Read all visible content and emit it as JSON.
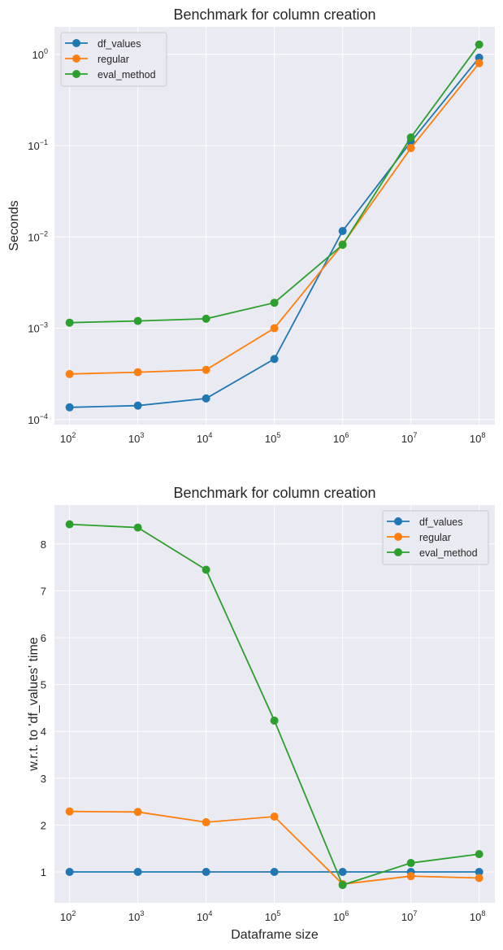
{
  "chart_data": [
    {
      "type": "line",
      "title": "Benchmark for column creation",
      "xlabel": "",
      "ylabel": "Seconds",
      "xscale": "log",
      "yscale": "log",
      "x": [
        100,
        1000,
        10000,
        100000,
        1000000,
        10000000,
        100000000
      ],
      "x_exponents": [
        "2",
        "3",
        "4",
        "5",
        "6",
        "7",
        "8"
      ],
      "xlim": [
        60,
        170000000
      ],
      "ylim": [
        8.8e-05,
        2.0
      ],
      "y_ticks": [
        0.0001,
        0.001,
        0.01,
        0.1,
        1
      ],
      "y_tick_exponents": [
        "−4",
        "−3",
        "−2",
        "−1",
        "0"
      ],
      "tick_base": "10",
      "grid": true,
      "legend_position": "top-left",
      "series": [
        {
          "name": "df_values",
          "color": "#1f77b4",
          "values": [
            0.000136,
            0.000142,
            0.00017,
            0.00046,
            0.0116,
            0.11,
            0.92
          ]
        },
        {
          "name": "regular",
          "color": "#ff7f0e",
          "values": [
            0.000315,
            0.00033,
            0.00035,
            0.001,
            0.0083,
            0.094,
            0.8
          ]
        },
        {
          "name": "eval_method",
          "color": "#2ca02c",
          "values": [
            0.00115,
            0.0012,
            0.00127,
            0.0019,
            0.0082,
            0.123,
            1.28
          ]
        }
      ]
    },
    {
      "type": "line",
      "title": "Benchmark for column creation",
      "xlabel": "Dataframe size",
      "ylabel": "w.r.t. to 'df_values' time",
      "xscale": "log",
      "yscale": "linear",
      "x": [
        100,
        1000,
        10000,
        100000,
        1000000,
        10000000,
        100000000
      ],
      "x_exponents": [
        "2",
        "3",
        "4",
        "5",
        "6",
        "7",
        "8"
      ],
      "xlim": [
        60,
        170000000
      ],
      "ylim": [
        0.34,
        8.83
      ],
      "y_ticks": [
        1,
        2,
        3,
        4,
        5,
        6,
        7,
        8
      ],
      "y_tick_labels": [
        "1",
        "2",
        "3",
        "4",
        "5",
        "6",
        "7",
        "8"
      ],
      "tick_base": "10",
      "grid": true,
      "legend_position": "top-right",
      "series": [
        {
          "name": "df_values",
          "color": "#1f77b4",
          "values": [
            1,
            1,
            1,
            1,
            1,
            1,
            1
          ]
        },
        {
          "name": "regular",
          "color": "#ff7f0e",
          "values": [
            2.29,
            2.28,
            2.06,
            2.18,
            0.74,
            0.91,
            0.87
          ]
        },
        {
          "name": "eval_method",
          "color": "#2ca02c",
          "values": [
            8.42,
            8.35,
            7.45,
            4.23,
            0.72,
            1.19,
            1.38
          ]
        }
      ]
    }
  ]
}
